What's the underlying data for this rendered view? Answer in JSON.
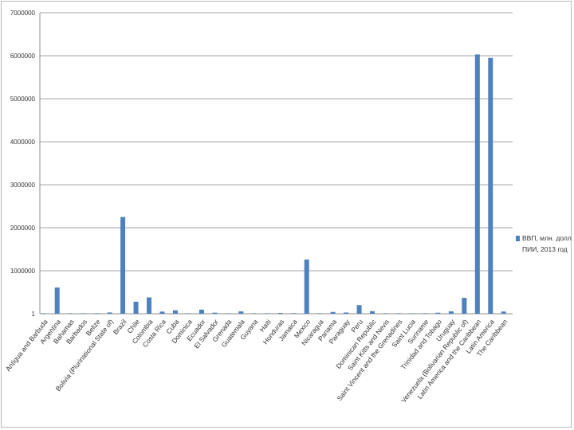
{
  "chart_data": {
    "type": "bar",
    "title": "",
    "xlabel": "",
    "ylabel": "",
    "ylim": [
      0,
      7000000
    ],
    "yticks": [
      "1",
      "1000000",
      "2000000",
      "3000000",
      "4000000",
      "5000000",
      "6000000",
      "7000000"
    ],
    "ytick_values": [
      0,
      1000000,
      2000000,
      3000000,
      4000000,
      5000000,
      6000000,
      7000000
    ],
    "grid": "horizontal",
    "legend_position": "right",
    "categories": [
      "Antigua and Barbuda",
      "Argentina",
      "Bahamas",
      "Barbados",
      "Belize",
      "Bolivia (Plurinational State of)",
      "Brazil",
      "Chile",
      "Colombia",
      "Costa Rica",
      "Cuba",
      "Dominica",
      "Ecuador",
      "El Salvador",
      "Grenada",
      "Guatemala",
      "Guyana",
      "Haiti",
      "Honduras",
      "Jamaica",
      "Mexico",
      "Nicaragua",
      "Panama",
      "Paraguay",
      "Peru",
      "Dominican Republic",
      "Saint Kitts and Nevis",
      "Saint Vincent and the Grenadines",
      "Saint Lucia",
      "Suriname",
      "Trinidad and Tobago",
      "Uruguay",
      "Venezuela (Bolivarian Republic of)",
      "Latin America and the Caribbean",
      "Latin America",
      "The Caribbean"
    ],
    "series": [
      {
        "name": "ВВП, млн. долл",
        "color": "#4f81bd",
        "values": [
          1200,
          610000,
          8000,
          4300,
          1600,
          30000,
          2250000,
          280000,
          380000,
          50000,
          80000,
          500,
          95000,
          25000,
          800,
          55000,
          3000,
          8000,
          19000,
          14000,
          1260000,
          11000,
          42000,
          29000,
          200000,
          61000,
          800,
          700,
          1300,
          5200,
          24000,
          56000,
          370000,
          6030000,
          5950000,
          52000
        ]
      },
      {
        "name": "ПИИ, 2013 год",
        "color": "#c0504d",
        "values": [
          0,
          0,
          0,
          0,
          0,
          0,
          0,
          0,
          0,
          0,
          0,
          0,
          0,
          0,
          0,
          0,
          0,
          0,
          0,
          0,
          0,
          0,
          0,
          0,
          0,
          0,
          0,
          0,
          0,
          0,
          0,
          0,
          0,
          0,
          0,
          0
        ]
      }
    ]
  }
}
